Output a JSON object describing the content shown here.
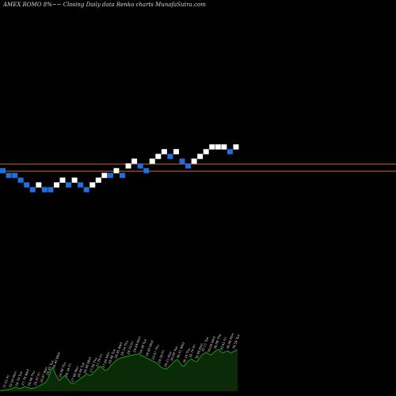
{
  "chart_title": "AMEX  ROMO 8%~~  Closing Daily data  Renko  charts MunafaSutra.com",
  "colors": {
    "background": "#000000",
    "up_brick": "#ffffff",
    "down_brick": "#1e6fe0",
    "reference_line": "#c8682e",
    "volume_fill": "#0b2a07",
    "volume_edge": "#1f9a14",
    "volume_label": "#d8d8d8"
  },
  "chart_data": {
    "type": "renko",
    "title": "AMEX  ROMO 8%~~  Closing Daily data  Renko  charts MunafaSutra.com",
    "brick_levels": [
      1,
      0,
      0,
      -1,
      -2,
      -3,
      -2,
      -3,
      -3,
      -2,
      -1,
      -2,
      -1,
      -2,
      -3,
      -2,
      -1,
      0,
      0,
      1,
      0,
      2,
      3,
      2,
      1,
      3,
      4,
      5,
      4,
      5,
      3,
      2,
      3,
      4,
      5,
      6,
      6,
      6,
      5,
      6
    ],
    "brick_directions": [
      "down",
      "down",
      "down",
      "down",
      "down",
      "down",
      "up",
      "down",
      "down",
      "up",
      "up",
      "down",
      "up",
      "down",
      "down",
      "up",
      "up",
      "up",
      "down",
      "up",
      "down",
      "up",
      "up",
      "down",
      "down",
      "up",
      "up",
      "up",
      "down",
      "up",
      "down",
      "down",
      "up",
      "up",
      "up",
      "up",
      "up",
      "up",
      "down",
      "up"
    ],
    "reference_lines": [
      2.4,
      0.9
    ],
    "volume_profile": [
      1,
      1,
      1,
      2,
      2,
      2,
      3,
      3,
      3,
      4,
      5,
      6,
      6,
      5,
      4,
      4,
      5,
      6,
      7,
      7,
      6,
      5,
      5,
      4,
      4,
      5,
      5,
      6,
      7,
      8,
      9,
      10,
      11,
      12,
      14,
      17,
      21,
      26,
      32,
      35,
      31,
      26,
      22,
      18,
      16,
      18,
      20,
      22,
      23,
      21,
      19,
      16,
      13,
      12,
      11,
      12,
      14,
      15,
      16,
      18,
      20,
      21,
      22,
      24,
      26,
      25,
      24,
      23,
      25,
      27,
      29,
      31,
      33,
      35,
      37,
      36,
      34,
      32,
      31,
      32,
      33,
      35,
      38,
      40,
      42,
      44,
      46,
      47,
      48,
      49,
      50,
      50,
      51,
      51,
      52,
      52,
      53,
      54,
      53,
      54,
      55,
      55,
      55,
      56,
      54,
      53,
      52,
      51,
      50,
      49,
      48,
      47,
      46,
      45,
      44,
      43,
      42,
      41,
      39,
      36,
      35,
      34,
      33,
      33,
      34,
      36,
      38,
      40,
      42,
      44,
      46,
      47,
      46,
      43,
      40,
      38,
      37,
      39,
      41,
      44,
      46,
      47,
      48,
      46,
      45,
      44,
      45,
      47,
      50,
      53,
      55,
      56,
      57,
      58,
      56,
      55,
      54,
      55,
      57,
      59,
      60,
      61,
      62,
      60,
      58,
      57,
      58,
      59,
      59,
      60,
      58,
      57,
      58,
      59,
      60,
      61,
      61
    ],
    "volume_labels": [
      "31.01 Fri",
      "02.04 Mon",
      "26.78 Tue",
      "27.78 Wed",
      "28.98 Thu",
      "26.97 Fri",
      "26.87 Mon",
      "26.45 Tue",
      "26.40 Wed",
      "26.98 Thu",
      "26.34 Fri",
      "27.08 Mon",
      "26.44 Tue",
      "26.98 Wed",
      "27.58 Thu",
      "27.79 Fri",
      "27.64 Mon",
      "28.40 Tue",
      "28.45 Wed",
      "28.14 Thu",
      "28.79 Fri",
      "29.68 Mon",
      "29.39 Tue",
      "28.85 Wed",
      "29.07 Thu",
      "29.58 Fri",
      "29.21 Mon",
      "30.08 Tue",
      "30.41 Wed",
      "30.19 Thu",
      "30.74 Fri",
      "30.98 Mon",
      "30.11 Tue",
      "30.06 Wed",
      "30.09 Thu",
      "30.61 Fri",
      "30.96 Mon",
      "30.56 Tue"
    ]
  }
}
